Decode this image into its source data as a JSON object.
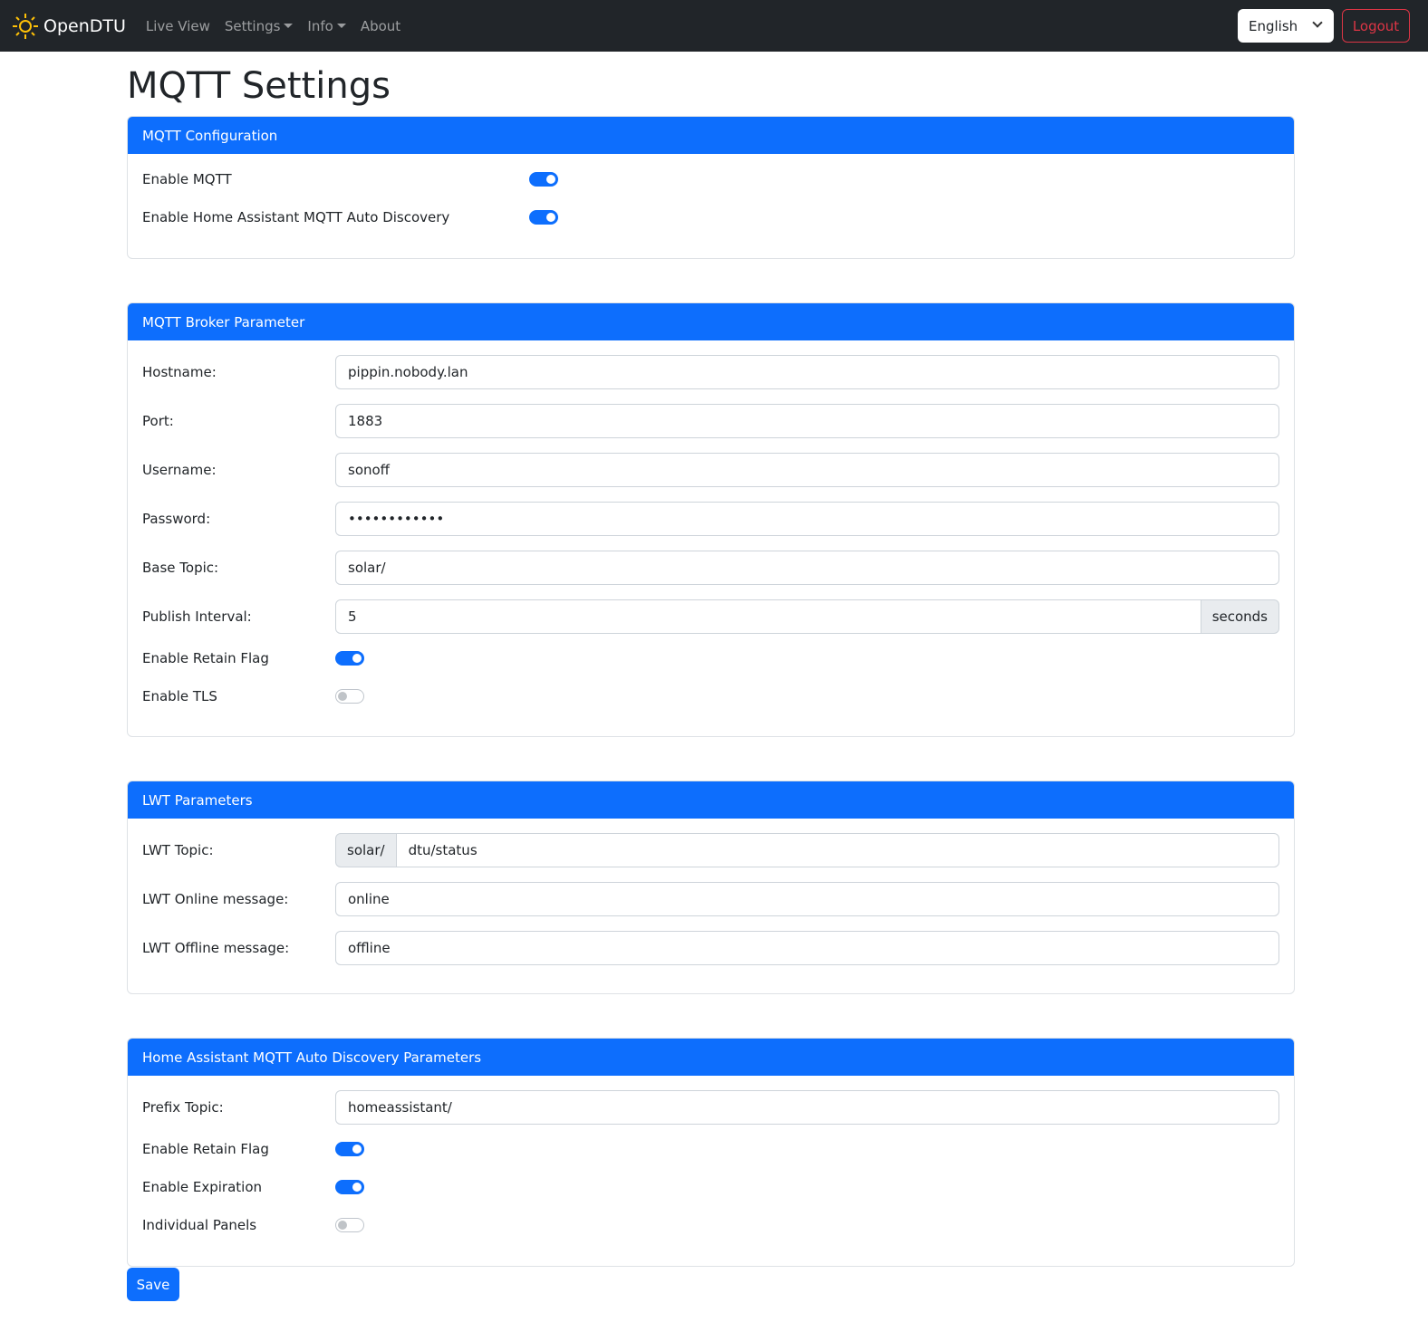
{
  "nav": {
    "brand": "OpenDTU",
    "links": [
      {
        "label": "Live View"
      },
      {
        "label": "Settings",
        "dropdown": true
      },
      {
        "label": "Info",
        "dropdown": true
      },
      {
        "label": "About"
      }
    ],
    "language": "English",
    "logout": "Logout"
  },
  "title": "MQTT Settings",
  "config": {
    "header": "MQTT Configuration",
    "enable_mqtt": {
      "label": "Enable MQTT",
      "on": true
    },
    "enable_ha": {
      "label": "Enable Home Assistant MQTT Auto Discovery",
      "on": true
    }
  },
  "broker": {
    "header": "MQTT Broker Parameter",
    "hostname": {
      "label": "Hostname:",
      "value": "pippin.nobody.lan"
    },
    "port": {
      "label": "Port:",
      "value": "1883"
    },
    "username": {
      "label": "Username:",
      "value": "sonoff"
    },
    "password": {
      "label": "Password:",
      "value": "••••••••••••"
    },
    "base_topic": {
      "label": "Base Topic:",
      "value": "solar/"
    },
    "publish_interval": {
      "label": "Publish Interval:",
      "value": "5",
      "unit": "seconds"
    },
    "retain": {
      "label": "Enable Retain Flag",
      "on": true
    },
    "tls": {
      "label": "Enable TLS",
      "on": false
    }
  },
  "lwt": {
    "header": "LWT Parameters",
    "topic": {
      "label": "LWT Topic:",
      "prefix": "solar/",
      "value": "dtu/status"
    },
    "online": {
      "label": "LWT Online message:",
      "value": "online"
    },
    "offline": {
      "label": "LWT Offline message:",
      "value": "offline"
    }
  },
  "ha": {
    "header": "Home Assistant MQTT Auto Discovery Parameters",
    "prefix": {
      "label": "Prefix Topic:",
      "value": "homeassistant/"
    },
    "retain": {
      "label": "Enable Retain Flag",
      "on": true
    },
    "expiration": {
      "label": "Enable Expiration",
      "on": true
    },
    "panels": {
      "label": "Individual Panels",
      "on": false
    }
  },
  "save": "Save",
  "colors": {
    "primary": "#0d6efd",
    "navbar": "#212529",
    "danger": "#dc3545",
    "logo": "#ffc107"
  }
}
